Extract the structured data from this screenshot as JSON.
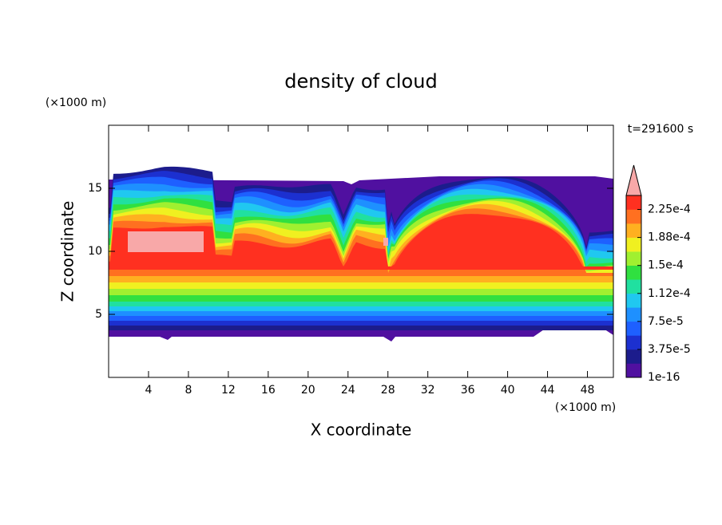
{
  "chart_data": {
    "type": "contour",
    "title": "density of cloud",
    "x_label": "X coordinate",
    "y_label": "Z coordinate",
    "x_unit": "(×1000 m)",
    "y_unit": "(×1000 m)",
    "annotation": "t=291600 s",
    "xlim": [
      0,
      50.6
    ],
    "ylim": [
      0,
      20
    ],
    "xticks": [
      4,
      8,
      12,
      16,
      20,
      24,
      28,
      32,
      36,
      40,
      44,
      48
    ],
    "yticks": [
      5,
      10,
      15
    ],
    "colorbar": {
      "clim": [
        1e-16,
        0.00024375
      ],
      "ticks": [
        {
          "value": 1e-16,
          "label": "1e-16"
        },
        {
          "value": 3.75e-05,
          "label": "3.75e-5"
        },
        {
          "value": 7.5e-05,
          "label": "7.5e-5"
        },
        {
          "value": 0.0001125,
          "label": "1.12e-4"
        },
        {
          "value": 0.00015,
          "label": "1.5e-4"
        },
        {
          "value": 0.0001875,
          "label": "1.88e-4"
        },
        {
          "value": 0.000225,
          "label": "2.25e-4"
        }
      ],
      "colors": [
        "#5010a0",
        "#1c1c8c",
        "#1c30d0",
        "#1e60ff",
        "#1e90ff",
        "#20c8f0",
        "#20e0a0",
        "#30e040",
        "#a0f030",
        "#f0f020",
        "#ffb020",
        "#ff7020",
        "#ff3020"
      ],
      "extend_color": "#f8a8a8"
    }
  }
}
